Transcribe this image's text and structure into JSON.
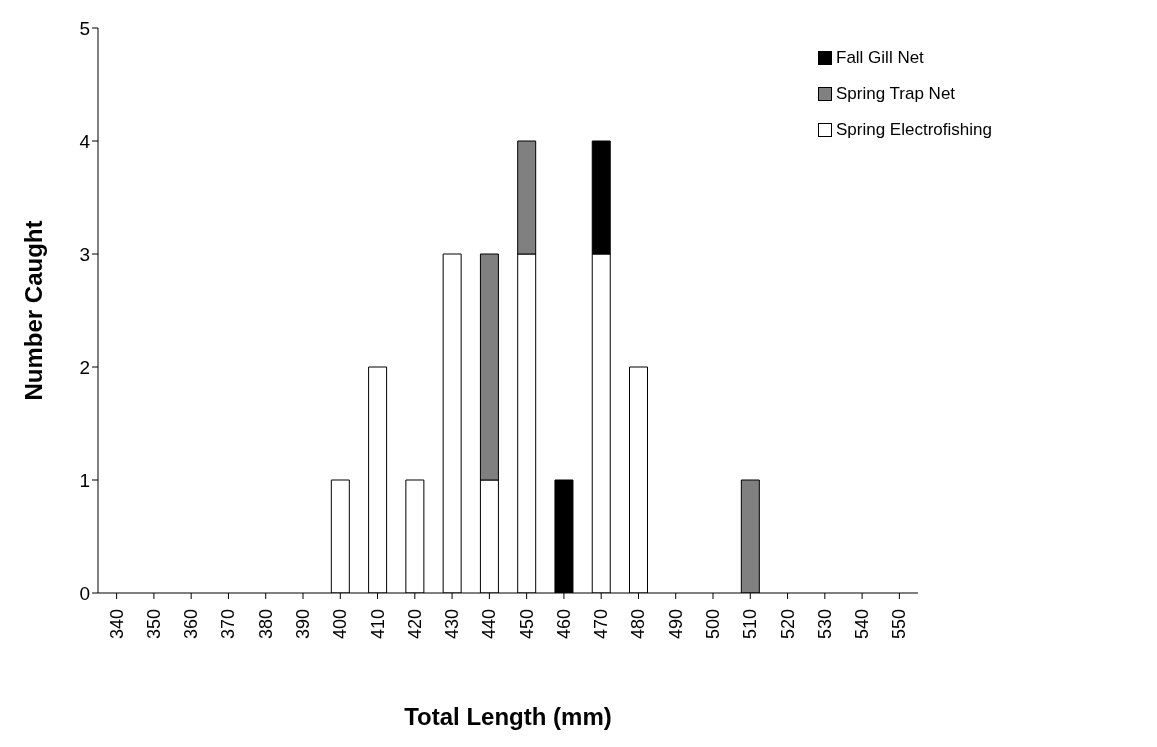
{
  "chart_data": {
    "type": "bar",
    "stacked": true,
    "xlabel": "Total Length (mm)",
    "ylabel": "Number Caught",
    "categories": [
      "340",
      "350",
      "360",
      "370",
      "380",
      "390",
      "400",
      "410",
      "420",
      "430",
      "440",
      "450",
      "460",
      "470",
      "480",
      "490",
      "500",
      "510",
      "520",
      "530",
      "540",
      "550"
    ],
    "series": [
      {
        "name": "Spring Electrofishing",
        "color": "#ffffff",
        "values": [
          0,
          0,
          0,
          0,
          0,
          0,
          1,
          2,
          1,
          3,
          1,
          3,
          0,
          3,
          2,
          0,
          0,
          0,
          0,
          0,
          0,
          0
        ]
      },
      {
        "name": "Spring Trap Net",
        "color": "#808080",
        "values": [
          0,
          0,
          0,
          0,
          0,
          0,
          0,
          0,
          0,
          0,
          2,
          1,
          0,
          0,
          0,
          0,
          0,
          1,
          0,
          0,
          0,
          0
        ]
      },
      {
        "name": "Fall Gill Net",
        "color": "#000000",
        "values": [
          0,
          0,
          0,
          0,
          0,
          0,
          0,
          0,
          0,
          0,
          0,
          0,
          1,
          1,
          0,
          0,
          0,
          0,
          0,
          0,
          0,
          0
        ]
      }
    ],
    "ylim": [
      0,
      5
    ],
    "yticks": [
      0,
      1,
      2,
      3,
      4,
      5
    ],
    "grid": false,
    "legend": "top right"
  }
}
